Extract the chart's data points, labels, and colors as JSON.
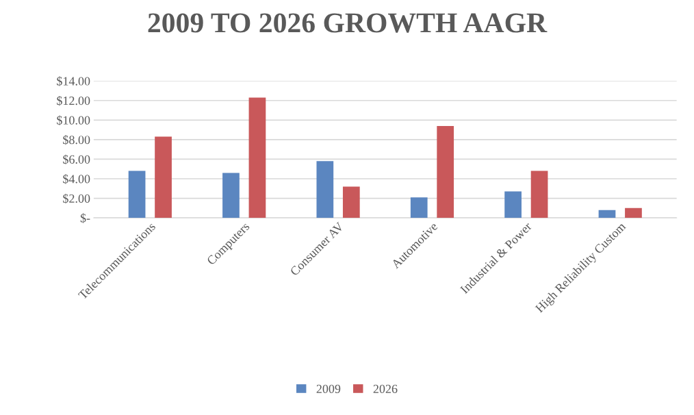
{
  "chart_data": {
    "type": "bar",
    "title": "2009 TO 2026 GROWTH AAGR",
    "categories": [
      "Telecommunications",
      "Computers",
      "Consumer AV",
      "Automotive",
      "Industrial & Power",
      "High Reliability Custom"
    ],
    "series": [
      {
        "name": "2009",
        "color": "#5b86c0",
        "values": [
          4.8,
          4.6,
          5.8,
          2.1,
          2.7,
          0.8
        ]
      },
      {
        "name": "2026",
        "color": "#c9585a",
        "values": [
          8.3,
          12.3,
          3.2,
          9.4,
          4.8,
          1.0
        ]
      }
    ],
    "ylim": [
      0,
      14
    ],
    "yticks": [
      {
        "value": 0,
        "label": "$-"
      },
      {
        "value": 2,
        "label": "$2.00"
      },
      {
        "value": 4,
        "label": "$4.00"
      },
      {
        "value": 6,
        "label": "$6.00"
      },
      {
        "value": 8,
        "label": "$8.00"
      },
      {
        "value": 10,
        "label": "$10.00"
      },
      {
        "value": 12,
        "label": "$12.00"
      },
      {
        "value": 14,
        "label": "$14.00"
      }
    ],
    "grid": "y",
    "legend": "bottom"
  }
}
